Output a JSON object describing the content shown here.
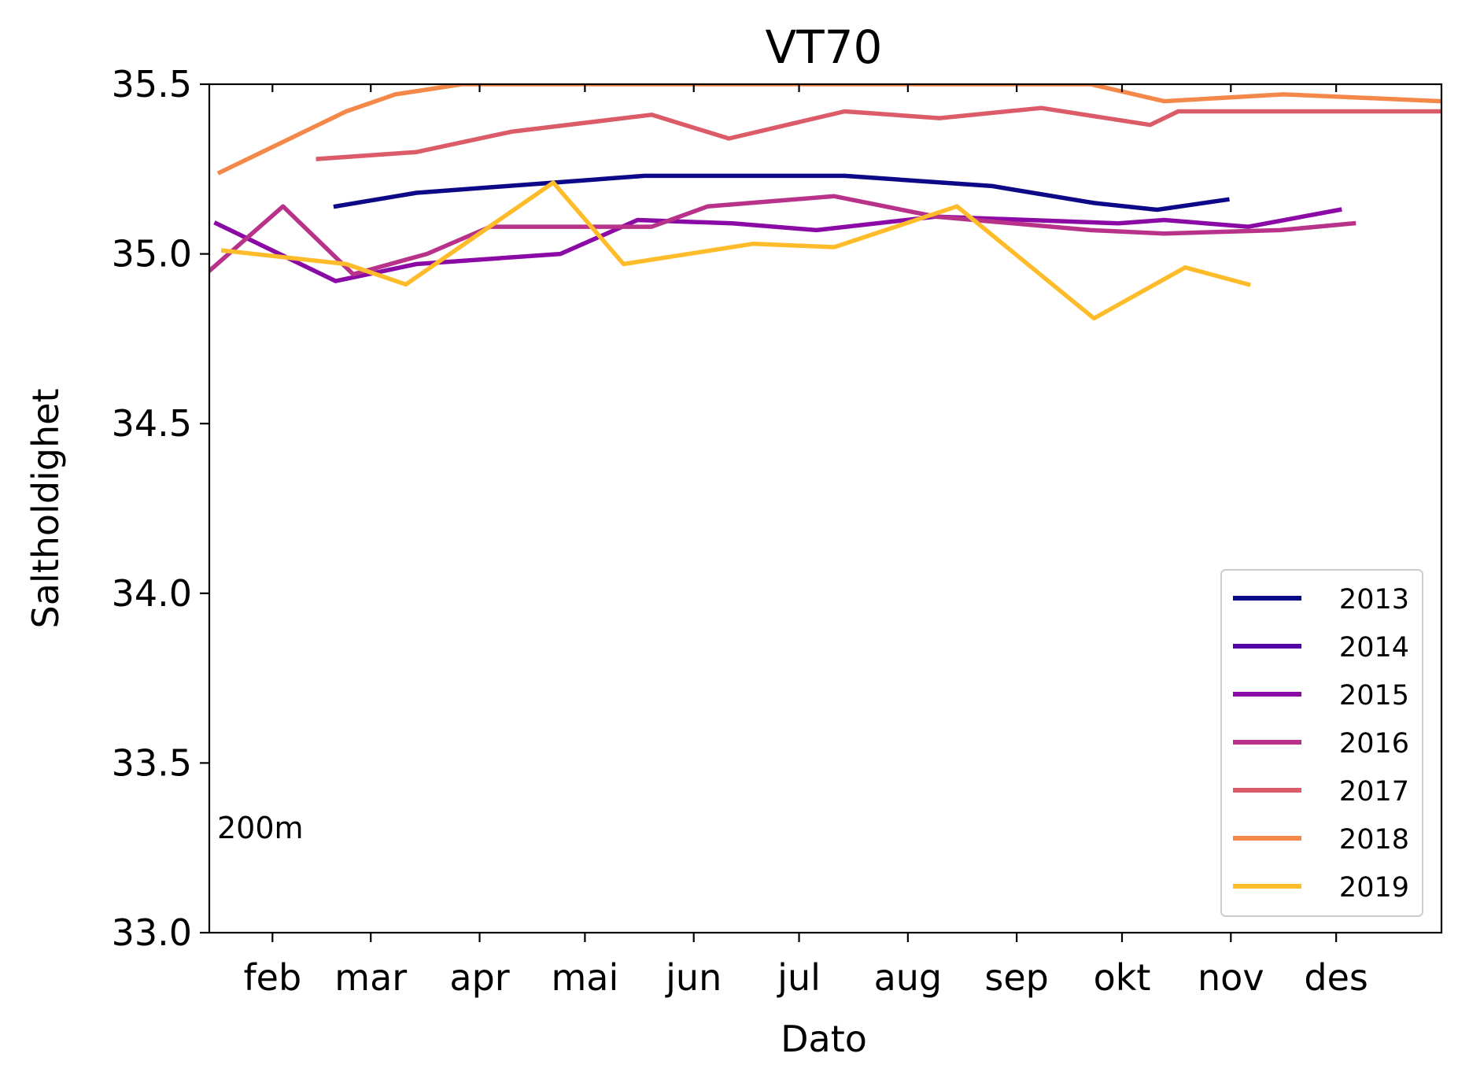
{
  "chart_data": {
    "type": "line",
    "title": "VT70",
    "xlabel": "Dato",
    "ylabel": "Saltholdighet",
    "annotation": "200m",
    "x_unit": "day-of-year",
    "xlim": [
      14,
      365
    ],
    "ylim": [
      33.0,
      35.5
    ],
    "y_ticks": [
      "33.0",
      "33.5",
      "34.0",
      "34.5",
      "35.0",
      "35.5"
    ],
    "x_ticks": [
      {
        "label": "feb",
        "day": 32
      },
      {
        "label": "mar",
        "day": 60
      },
      {
        "label": "apr",
        "day": 91
      },
      {
        "label": "mai",
        "day": 121
      },
      {
        "label": "jun",
        "day": 152
      },
      {
        "label": "jul",
        "day": 182
      },
      {
        "label": "aug",
        "day": 213
      },
      {
        "label": "sep",
        "day": 244
      },
      {
        "label": "okt",
        "day": 274
      },
      {
        "label": "nov",
        "day": 305
      },
      {
        "label": "des",
        "day": 335
      }
    ],
    "grid": false,
    "legend_position": "lower-right",
    "series": [
      {
        "name": "2013",
        "color": "#0d0887",
        "points": [
          [
            50,
            35.14
          ],
          [
            73,
            35.18
          ],
          [
            138,
            35.23
          ],
          [
            195,
            35.23
          ],
          [
            237,
            35.2
          ],
          [
            266,
            35.15
          ],
          [
            284,
            35.13
          ],
          [
            304,
            35.16
          ]
        ]
      },
      {
        "name": "2014",
        "color": "#5302a3",
        "points": []
      },
      {
        "name": "2015",
        "color": "#8b0aa5",
        "points": [
          [
            16,
            35.09
          ],
          [
            50,
            34.92
          ],
          [
            73,
            34.97
          ],
          [
            114,
            35.0
          ],
          [
            136,
            35.1
          ],
          [
            163,
            35.09
          ],
          [
            187,
            35.07
          ],
          [
            221,
            35.11
          ],
          [
            273,
            35.09
          ],
          [
            286,
            35.1
          ],
          [
            310,
            35.08
          ],
          [
            336,
            35.13
          ]
        ]
      },
      {
        "name": "2016",
        "color": "#b83289",
        "points": [
          [
            14,
            34.95
          ],
          [
            35,
            35.14
          ],
          [
            55,
            34.94
          ],
          [
            76,
            35.0
          ],
          [
            94,
            35.08
          ],
          [
            140,
            35.08
          ],
          [
            156,
            35.14
          ],
          [
            192,
            35.17
          ],
          [
            221,
            35.11
          ],
          [
            265,
            35.07
          ],
          [
            286,
            35.06
          ],
          [
            319,
            35.07
          ],
          [
            340,
            35.09
          ]
        ]
      },
      {
        "name": "2017",
        "color": "#db5c68",
        "points": [
          [
            45,
            35.28
          ],
          [
            73,
            35.3
          ],
          [
            100,
            35.36
          ],
          [
            140,
            35.41
          ],
          [
            162,
            35.34
          ],
          [
            195,
            35.42
          ],
          [
            222,
            35.4
          ],
          [
            251,
            35.43
          ],
          [
            282,
            35.38
          ],
          [
            290,
            35.42
          ],
          [
            365,
            35.42
          ]
        ]
      },
      {
        "name": "2018",
        "color": "#f48849",
        "points": [
          [
            17,
            35.24
          ],
          [
            53,
            35.42
          ],
          [
            67,
            35.47
          ],
          [
            86,
            35.5
          ],
          [
            265,
            35.5
          ],
          [
            286,
            35.45
          ],
          [
            320,
            35.47
          ],
          [
            365,
            35.45
          ]
        ]
      },
      {
        "name": "2019",
        "color": "#febc2a",
        "points": [
          [
            18,
            35.01
          ],
          [
            53,
            34.97
          ],
          [
            70,
            34.91
          ],
          [
            112,
            35.21
          ],
          [
            132,
            34.97
          ],
          [
            169,
            35.03
          ],
          [
            192,
            35.02
          ],
          [
            227,
            35.14
          ],
          [
            266,
            34.81
          ],
          [
            292,
            34.96
          ],
          [
            310,
            34.91
          ]
        ]
      }
    ]
  }
}
